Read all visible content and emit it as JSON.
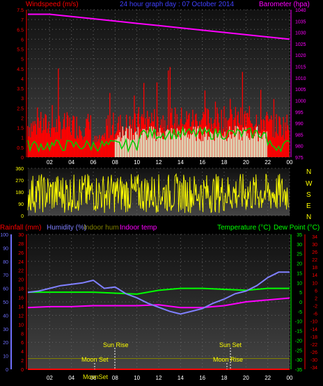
{
  "header": {
    "windspeed_label": "Windspeed (m/s)",
    "title": "24 hour graph day : 07 October 2014",
    "barometer_label": "Barometer (hpa)"
  },
  "compass": [
    "N",
    "W",
    "S",
    "E",
    "N"
  ],
  "bottom_labels": {
    "rainfall": "Rainfall (mm)",
    "humidity": "Humidity (%)",
    "indoor_hum": "Indoor hum",
    "indoor_temp": "Indoor temp",
    "temperature": "Temperature (°C)",
    "dew_point": "Dew Point (°C)"
  },
  "events": {
    "sun_rise": "Sun Rise",
    "moon_set": "Moon Set",
    "sun_set": "Sun Set",
    "moon_rise": "Moon Rise",
    "moon_sun_overlap": "MoonSet"
  },
  "colors": {
    "wind": "#ff0000",
    "gust_avg": "#00cc00",
    "direction": "#ffff00",
    "barometer": "#ff00ff",
    "humidity": "#8080ff",
    "temperature": "#00ff00",
    "dew_point": "#ff00ff",
    "rain": "#ff0000",
    "indoor_hum": "#808000",
    "indoor_temp": "#ff00ff",
    "hum_axis": "#7070ff",
    "temp_axis": "#00ff00",
    "dew_axis": "#ff0000"
  },
  "chart_data": [
    {
      "type": "line",
      "title": "24 hour graph day : 07 October 2014",
      "x_ticks": [
        "02",
        "04",
        "06",
        "08",
        "10",
        "12",
        "14",
        "16",
        "18",
        "20",
        "22",
        "00"
      ],
      "y_left_label": "Windspeed (m/s)",
      "y_left_ticks": [
        "0",
        "0.5",
        "1",
        "1.5",
        "2",
        "2.5",
        "3",
        "3.5",
        "4",
        "4.5",
        "5",
        "5.5",
        "6",
        "6.5",
        "7",
        "7.5"
      ],
      "y_left_lim": [
        0,
        7.5
      ],
      "y_right_label": "Barometer (hpa)",
      "y_right_ticks": [
        "975",
        "980",
        "985",
        "990",
        "995",
        "1000",
        "1005",
        "1010",
        "1015",
        "1020",
        "1025",
        "1030",
        "1035",
        "1040"
      ],
      "y_right_lim": [
        975,
        1040
      ],
      "series": [
        {
          "name": "Barometer",
          "axis": "right",
          "x": [
            0,
            2,
            4,
            6,
            8,
            10,
            12,
            14,
            16,
            18,
            20,
            22,
            24
          ],
          "values": [
            1038,
            1038,
            1037,
            1036,
            1035,
            1034,
            1033,
            1032,
            1031,
            1030,
            1029,
            1028,
            1027
          ]
        }
      ]
    },
    {
      "type": "scatter",
      "ylabel_ticks": [
        "0",
        "90",
        "180",
        "270",
        "360"
      ],
      "ylim": [
        0,
        360
      ],
      "x_ticks": [
        "02",
        "04",
        "06",
        "08",
        "10",
        "12",
        "14",
        "16",
        "18",
        "20",
        "22",
        "00"
      ]
    },
    {
      "type": "line",
      "x_ticks": [
        "02",
        "04",
        "06",
        "08",
        "10",
        "12",
        "14",
        "16",
        "18",
        "20",
        "22",
        "00"
      ],
      "humidity_ticks": [
        "0",
        "10",
        "20",
        "30",
        "40",
        "50",
        "60",
        "70",
        "80",
        "90",
        "100"
      ],
      "rain_ticks": [
        "0",
        "2",
        "4",
        "6",
        "8",
        "10",
        "12",
        "14",
        "16",
        "18",
        "20",
        "22",
        "24",
        "26",
        "28",
        "30"
      ],
      "temperature_ticks": [
        "-35",
        "-30",
        "-25",
        "-20",
        "-15",
        "-10",
        "-5",
        "0",
        "5",
        "10",
        "15",
        "20",
        "25",
        "30",
        "35"
      ],
      "dew_ticks": [
        "-34",
        "-30",
        "-26",
        "-22",
        "-18",
        "-14",
        "-10",
        "-6",
        "-2",
        "2",
        "6",
        "10",
        "14",
        "18",
        "22",
        "26",
        "30",
        "34"
      ],
      "series": [
        {
          "name": "Humidity (%)",
          "axis": "humidity",
          "x": [
            0,
            1,
            2,
            3,
            4,
            5,
            6,
            7,
            8,
            9,
            10,
            11,
            12,
            13,
            14,
            15,
            16,
            17,
            18,
            19,
            20,
            21,
            22,
            23,
            24
          ],
          "values": [
            57,
            58,
            60,
            62,
            63,
            64,
            66,
            60,
            61,
            56,
            53,
            49,
            46,
            43,
            41,
            43,
            45,
            49,
            52,
            56,
            58,
            62,
            68,
            72,
            72
          ]
        },
        {
          "name": "Temperature (°C)",
          "axis": "temperature",
          "x": [
            0,
            2,
            4,
            6,
            8,
            10,
            12,
            14,
            16,
            18,
            20,
            22,
            24
          ],
          "values": [
            5,
            5,
            5,
            5,
            4.5,
            4,
            6,
            7,
            7,
            6.5,
            6,
            7,
            7
          ]
        },
        {
          "name": "Dew Point (°C)",
          "axis": "temperature",
          "x": [
            0,
            2,
            4,
            6,
            8,
            10,
            12,
            14,
            16,
            18,
            20,
            22,
            24
          ],
          "values": [
            -3,
            -2.5,
            -2.5,
            -2,
            -2,
            -2,
            -1.5,
            -3,
            -3,
            -2,
            0,
            1,
            2
          ]
        },
        {
          "name": "Indoor hum",
          "axis": "humidity",
          "x": [
            0,
            24
          ],
          "values": [
            8,
            8
          ]
        },
        {
          "name": "Rainfall (mm)",
          "axis": "rain",
          "x": [
            0,
            24
          ],
          "values": [
            0,
            0
          ]
        }
      ]
    }
  ]
}
